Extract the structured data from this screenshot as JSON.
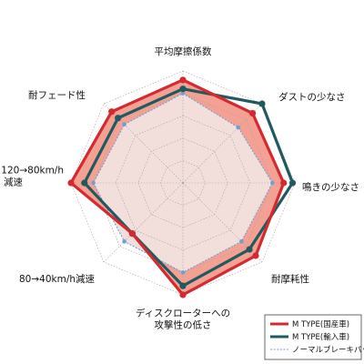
{
  "chart_data": {
    "type": "radar",
    "axes": [
      {
        "label_lines": [
          "平均摩擦係数"
        ]
      },
      {
        "label_lines": [
          "ダストの少なさ"
        ]
      },
      {
        "label_lines": [
          "鳴きの少なさ"
        ]
      },
      {
        "label_lines": [
          "耐摩耗性"
        ]
      },
      {
        "label_lines": [
          "ディスクローターへの",
          "攻撃性の低さ"
        ]
      },
      {
        "label_lines": [
          "80→40km/h減速"
        ]
      },
      {
        "label_lines": [
          "120→80km/h",
          "減速"
        ]
      },
      {
        "label_lines": [
          "耐フェード性"
        ]
      }
    ],
    "rlim": [
      0,
      5
    ],
    "rings": 5,
    "grid": true,
    "series": [
      {
        "name": "M TYPE(国産車)",
        "values": [
          4.6,
          4.4,
          4.5,
          4.6,
          5.0,
          3.2,
          5.0,
          4.5
        ],
        "color": "#d42a2f",
        "fill": "#f4a194",
        "style": "solid"
      },
      {
        "name": "M TYPE(輸入車)",
        "values": [
          4.2,
          5.0,
          4.9,
          4.2,
          4.6,
          3.2,
          4.4,
          4.1
        ],
        "color": "#1f5b5e",
        "fill": "none",
        "style": "solid"
      },
      {
        "name": "ノーマルブレーキパッド",
        "values": [
          4.0,
          3.5,
          4.0,
          3.7,
          4.0,
          3.7,
          4.0,
          3.7
        ],
        "color": "#6f9fd3",
        "fill": "#f2dfdc",
        "style": "dashed"
      }
    ],
    "legend_position": "bottom-right"
  }
}
